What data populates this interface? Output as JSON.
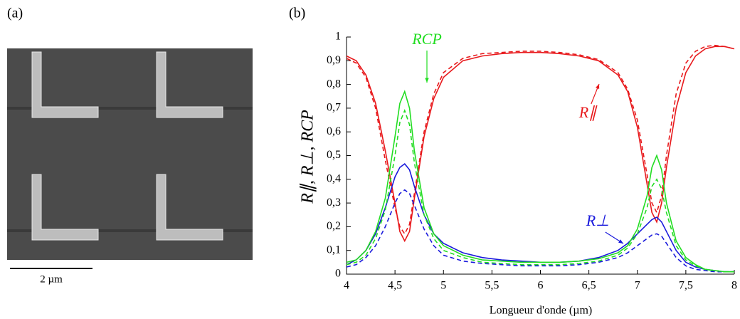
{
  "panel_a": {
    "label": "(a)",
    "scale_bar": "2 µm"
  },
  "chart_data": {
    "type": "line",
    "panel_label": "(b)",
    "xlabel": "Longueur d'onde (µm)",
    "ylabel": "R∥,  R⊥,  RCP",
    "annotations": [
      "RCP",
      "R∥",
      "R⊥"
    ],
    "xlim": [
      4,
      8
    ],
    "xticks": [
      4,
      {
        "value": 4.5,
        "label": "4,5"
      },
      5,
      {
        "value": 5.5,
        "label": "5,5"
      },
      6,
      {
        "value": 6.5,
        "label": "6,5"
      },
      7,
      {
        "value": 7.5,
        "label": "7,5"
      },
      8
    ],
    "ylim": [
      0,
      1
    ],
    "yticks": [
      0,
      {
        "value": 0.1,
        "label": "0,1"
      },
      {
        "value": 0.2,
        "label": "0,2"
      },
      {
        "value": 0.3,
        "label": "0,3"
      },
      {
        "value": 0.4,
        "label": "0,4"
      },
      {
        "value": 0.5,
        "label": "0,5"
      },
      {
        "value": 0.6,
        "label": "0,6"
      },
      {
        "value": 0.7,
        "label": "0,7"
      },
      {
        "value": 0.8,
        "label": "0,8"
      },
      {
        "value": 0.9,
        "label": "0,9"
      },
      1
    ],
    "x": [
      4.0,
      4.1,
      4.2,
      4.3,
      4.4,
      4.5,
      4.55,
      4.6,
      4.65,
      4.7,
      4.8,
      4.9,
      5.0,
      5.2,
      5.4,
      5.6,
      5.8,
      6.0,
      6.2,
      6.4,
      6.6,
      6.8,
      6.9,
      7.0,
      7.1,
      7.15,
      7.2,
      7.25,
      7.3,
      7.4,
      7.5,
      7.6,
      7.7,
      7.8,
      7.9,
      8.0
    ],
    "series": [
      {
        "color": "#e8191c",
        "dashed": false,
        "values": [
          0.92,
          0.9,
          0.84,
          0.72,
          0.52,
          0.3,
          0.18,
          0.14,
          0.18,
          0.32,
          0.58,
          0.74,
          0.83,
          0.9,
          0.92,
          0.93,
          0.935,
          0.935,
          0.93,
          0.92,
          0.9,
          0.84,
          0.77,
          0.62,
          0.38,
          0.26,
          0.22,
          0.3,
          0.45,
          0.7,
          0.85,
          0.92,
          0.95,
          0.96,
          0.96,
          0.95
        ]
      },
      {
        "color": "#e8191c",
        "dashed": true,
        "values": [
          0.91,
          0.89,
          0.83,
          0.7,
          0.48,
          0.28,
          0.2,
          0.17,
          0.21,
          0.34,
          0.6,
          0.76,
          0.85,
          0.91,
          0.93,
          0.935,
          0.94,
          0.94,
          0.935,
          0.925,
          0.905,
          0.85,
          0.78,
          0.65,
          0.42,
          0.3,
          0.26,
          0.33,
          0.5,
          0.76,
          0.89,
          0.94,
          0.96,
          0.965,
          0.96,
          0.95
        ]
      },
      {
        "color": "#1a1adc",
        "dashed": false,
        "values": [
          0.04,
          0.06,
          0.1,
          0.17,
          0.28,
          0.41,
          0.45,
          0.465,
          0.44,
          0.37,
          0.25,
          0.17,
          0.13,
          0.09,
          0.07,
          0.06,
          0.055,
          0.05,
          0.05,
          0.055,
          0.07,
          0.1,
          0.13,
          0.17,
          0.21,
          0.23,
          0.24,
          0.22,
          0.18,
          0.1,
          0.05,
          0.03,
          0.02,
          0.015,
          0.01,
          0.01
        ]
      },
      {
        "color": "#1a1adc",
        "dashed": true,
        "values": [
          0.03,
          0.04,
          0.07,
          0.12,
          0.2,
          0.3,
          0.34,
          0.355,
          0.34,
          0.29,
          0.19,
          0.12,
          0.08,
          0.055,
          0.045,
          0.04,
          0.035,
          0.035,
          0.035,
          0.04,
          0.05,
          0.07,
          0.09,
          0.12,
          0.15,
          0.165,
          0.17,
          0.16,
          0.13,
          0.07,
          0.035,
          0.02,
          0.015,
          0.01,
          0.01,
          0.01
        ]
      },
      {
        "color": "#22dd22",
        "dashed": false,
        "values": [
          0.05,
          0.06,
          0.1,
          0.18,
          0.32,
          0.58,
          0.72,
          0.77,
          0.7,
          0.52,
          0.28,
          0.17,
          0.12,
          0.08,
          0.06,
          0.055,
          0.05,
          0.05,
          0.05,
          0.055,
          0.065,
          0.09,
          0.12,
          0.19,
          0.33,
          0.45,
          0.5,
          0.44,
          0.3,
          0.14,
          0.07,
          0.04,
          0.02,
          0.015,
          0.01,
          0.01
        ]
      },
      {
        "color": "#22dd22",
        "dashed": true,
        "values": [
          0.04,
          0.05,
          0.08,
          0.15,
          0.27,
          0.5,
          0.64,
          0.69,
          0.63,
          0.47,
          0.25,
          0.15,
          0.1,
          0.07,
          0.05,
          0.045,
          0.04,
          0.04,
          0.04,
          0.045,
          0.055,
          0.08,
          0.11,
          0.17,
          0.28,
          0.37,
          0.4,
          0.36,
          0.26,
          0.12,
          0.06,
          0.035,
          0.02,
          0.015,
          0.01,
          0.01
        ]
      }
    ]
  }
}
